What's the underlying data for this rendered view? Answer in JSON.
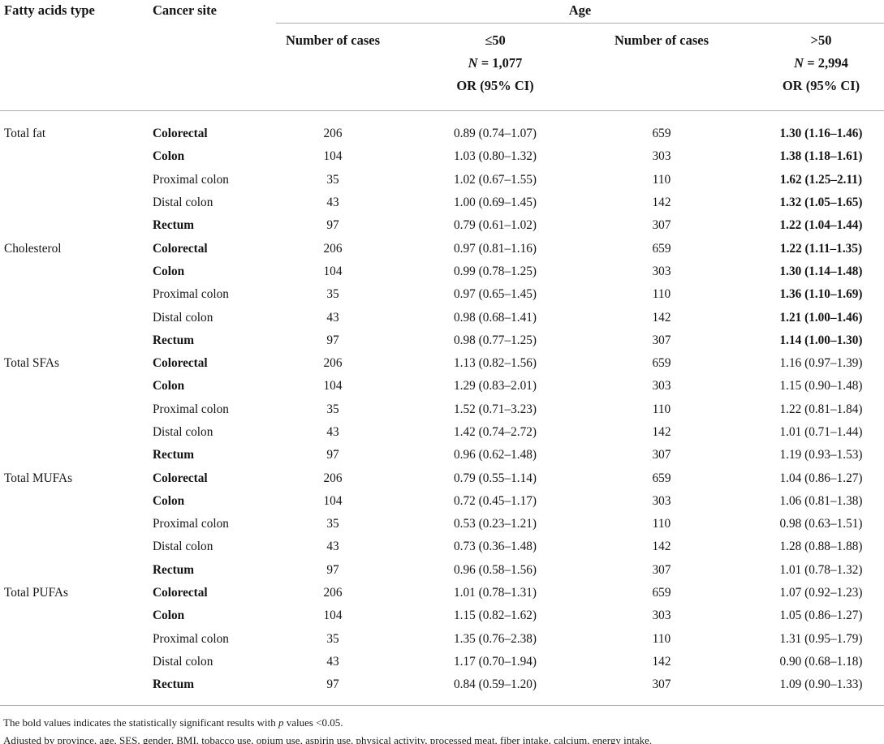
{
  "table": {
    "header": {
      "fatty_acids_type": "Fatty acids type",
      "cancer_site": "Cancer site",
      "age": "Age",
      "number_of_cases": "Number of cases",
      "le50_label": "≤50",
      "n_symbol": "N",
      "le50_n": " = 1,077",
      "gt50_label": ">50",
      "gt50_n": " = 2,994",
      "or_ci": "OR (95% CI)"
    },
    "groups": [
      {
        "fatty_acid": "Total fat",
        "rows": [
          {
            "site": "Colorectal",
            "site_bold": true,
            "n_le50": "206",
            "or_le50": "0.89 (0.74–1.07)",
            "n_gt50": "659",
            "or_gt50": "1.30 (1.16–1.46)",
            "gt50_bold": true
          },
          {
            "site": "Colon",
            "site_bold": true,
            "n_le50": "104",
            "or_le50": "1.03 (0.80–1.32)",
            "n_gt50": "303",
            "or_gt50": "1.38 (1.18–1.61)",
            "gt50_bold": true
          },
          {
            "site": "Proximal colon",
            "site_bold": false,
            "n_le50": "35",
            "or_le50": "1.02 (0.67–1.55)",
            "n_gt50": "110",
            "or_gt50": "1.62 (1.25–2.11)",
            "gt50_bold": true
          },
          {
            "site": "Distal colon",
            "site_bold": false,
            "n_le50": "43",
            "or_le50": "1.00 (0.69–1.45)",
            "n_gt50": "142",
            "or_gt50": "1.32 (1.05–1.65)",
            "gt50_bold": true
          },
          {
            "site": "Rectum",
            "site_bold": true,
            "n_le50": "97",
            "or_le50": "0.79 (0.61–1.02)",
            "n_gt50": "307",
            "or_gt50": "1.22 (1.04–1.44)",
            "gt50_bold": true
          }
        ]
      },
      {
        "fatty_acid": "Cholesterol",
        "rows": [
          {
            "site": "Colorectal",
            "site_bold": true,
            "n_le50": "206",
            "or_le50": "0.97 (0.81–1.16)",
            "n_gt50": "659",
            "or_gt50": "1.22 (1.11–1.35)",
            "gt50_bold": true
          },
          {
            "site": "Colon",
            "site_bold": true,
            "n_le50": "104",
            "or_le50": "0.99 (0.78–1.25)",
            "n_gt50": "303",
            "or_gt50": "1.30 (1.14–1.48)",
            "gt50_bold": true
          },
          {
            "site": "Proximal colon",
            "site_bold": false,
            "n_le50": "35",
            "or_le50": "0.97 (0.65–1.45)",
            "n_gt50": "110",
            "or_gt50": "1.36 (1.10–1.69)",
            "gt50_bold": true
          },
          {
            "site": "Distal colon",
            "site_bold": false,
            "n_le50": "43",
            "or_le50": "0.98 (0.68–1.41)",
            "n_gt50": "142",
            "or_gt50": "1.21 (1.00–1.46)",
            "gt50_bold": true
          },
          {
            "site": "Rectum",
            "site_bold": true,
            "n_le50": "97",
            "or_le50": "0.98 (0.77–1.25)",
            "n_gt50": "307",
            "or_gt50": "1.14 (1.00–1.30)",
            "gt50_bold": true
          }
        ]
      },
      {
        "fatty_acid": "Total SFAs",
        "rows": [
          {
            "site": "Colorectal",
            "site_bold": true,
            "n_le50": "206",
            "or_le50": "1.13 (0.82–1.56)",
            "n_gt50": "659",
            "or_gt50": "1.16 (0.97–1.39)",
            "gt50_bold": false
          },
          {
            "site": "Colon",
            "site_bold": true,
            "n_le50": "104",
            "or_le50": "1.29 (0.83–2.01)",
            "n_gt50": "303",
            "or_gt50": "1.15 (0.90–1.48)",
            "gt50_bold": false
          },
          {
            "site": "Proximal colon",
            "site_bold": false,
            "n_le50": "35",
            "or_le50": "1.52 (0.71–3.23)",
            "n_gt50": "110",
            "or_gt50": "1.22 (0.81–1.84)",
            "gt50_bold": false
          },
          {
            "site": "Distal colon",
            "site_bold": false,
            "n_le50": "43",
            "or_le50": "1.42 (0.74–2.72)",
            "n_gt50": "142",
            "or_gt50": "1.01 (0.71–1.44)",
            "gt50_bold": false
          },
          {
            "site": "Rectum",
            "site_bold": true,
            "n_le50": "97",
            "or_le50": "0.96 (0.62–1.48)",
            "n_gt50": "307",
            "or_gt50": "1.19 (0.93–1.53)",
            "gt50_bold": false
          }
        ]
      },
      {
        "fatty_acid": "Total MUFAs",
        "rows": [
          {
            "site": "Colorectal",
            "site_bold": true,
            "n_le50": "206",
            "or_le50": "0.79 (0.55–1.14)",
            "n_gt50": "659",
            "or_gt50": "1.04 (0.86–1.27)",
            "gt50_bold": false
          },
          {
            "site": "Colon",
            "site_bold": true,
            "n_le50": "104",
            "or_le50": "0.72 (0.45–1.17)",
            "n_gt50": "303",
            "or_gt50": "1.06 (0.81–1.38)",
            "gt50_bold": false
          },
          {
            "site": "Proximal colon",
            "site_bold": false,
            "n_le50": "35",
            "or_le50": "0.53 (0.23–1.21)",
            "n_gt50": "110",
            "or_gt50": "0.98 (0.63–1.51)",
            "gt50_bold": false
          },
          {
            "site": "Distal colon",
            "site_bold": false,
            "n_le50": "43",
            "or_le50": "0.73 (0.36–1.48)",
            "n_gt50": "142",
            "or_gt50": "1.28 (0.88–1.88)",
            "gt50_bold": false
          },
          {
            "site": "Rectum",
            "site_bold": true,
            "n_le50": "97",
            "or_le50": "0.96 (0.58–1.56)",
            "n_gt50": "307",
            "or_gt50": "1.01 (0.78–1.32)",
            "gt50_bold": false
          }
        ]
      },
      {
        "fatty_acid": "Total PUFAs",
        "rows": [
          {
            "site": "Colorectal",
            "site_bold": true,
            "n_le50": "206",
            "or_le50": "1.01 (0.78–1.31)",
            "n_gt50": "659",
            "or_gt50": "1.07 (0.92–1.23)",
            "gt50_bold": false
          },
          {
            "site": "Colon",
            "site_bold": true,
            "n_le50": "104",
            "or_le50": "1.15 (0.82–1.62)",
            "n_gt50": "303",
            "or_gt50": "1.05 (0.86–1.27)",
            "gt50_bold": false
          },
          {
            "site": "Proximal colon",
            "site_bold": false,
            "n_le50": "35",
            "or_le50": "1.35 (0.76–2.38)",
            "n_gt50": "110",
            "or_gt50": "1.31 (0.95–1.79)",
            "gt50_bold": false
          },
          {
            "site": "Distal colon",
            "site_bold": false,
            "n_le50": "43",
            "or_le50": "1.17 (0.70–1.94)",
            "n_gt50": "142",
            "or_gt50": "0.90 (0.68–1.18)",
            "gt50_bold": false
          },
          {
            "site": "Rectum",
            "site_bold": true,
            "n_le50": "97",
            "or_le50": "0.84 (0.59–1.20)",
            "n_gt50": "307",
            "or_gt50": "1.09 (0.90–1.33)",
            "gt50_bold": false
          }
        ]
      }
    ],
    "footnotes": {
      "significance_pre": "The bold values indicates the statistically significant results with ",
      "significance_italic": "p",
      "significance_post": " values <0.05.",
      "adjusted": "Adjusted by province, age, SES, gender, BMI, tobacco use, opium use, aspirin use, physical activity, processed meat, fiber intake, calcium, energy intake."
    }
  }
}
